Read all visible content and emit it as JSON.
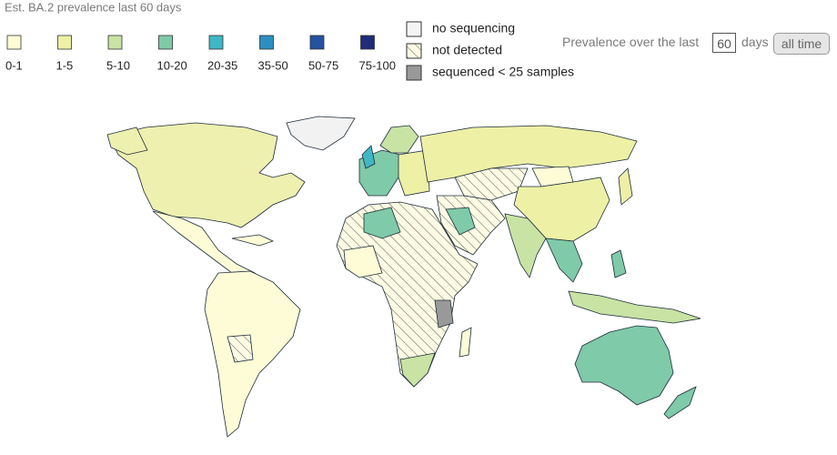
{
  "legend": {
    "title": "Est. BA.2 prevalence last 60 days",
    "bins": [
      {
        "label": "0-1",
        "color": "#fdfcd6"
      },
      {
        "label": "1-5",
        "color": "#eef0a6"
      },
      {
        "label": "5-10",
        "color": "#c8e3a4"
      },
      {
        "label": "10-20",
        "color": "#7fcaa8"
      },
      {
        "label": "20-35",
        "color": "#41b6c4"
      },
      {
        "label": "35-50",
        "color": "#2c8fc0"
      },
      {
        "label": "50-75",
        "color": "#2552a1"
      },
      {
        "label": "75-100",
        "color": "#202b79"
      }
    ]
  },
  "status_legend": [
    {
      "label": "no sequencing"
    },
    {
      "label": "not detected"
    },
    {
      "label": "sequenced < 25 samples"
    }
  ],
  "controls": {
    "prefix": "Prevalence over the last",
    "days": "60",
    "suffix": "days",
    "button": "all time"
  }
}
